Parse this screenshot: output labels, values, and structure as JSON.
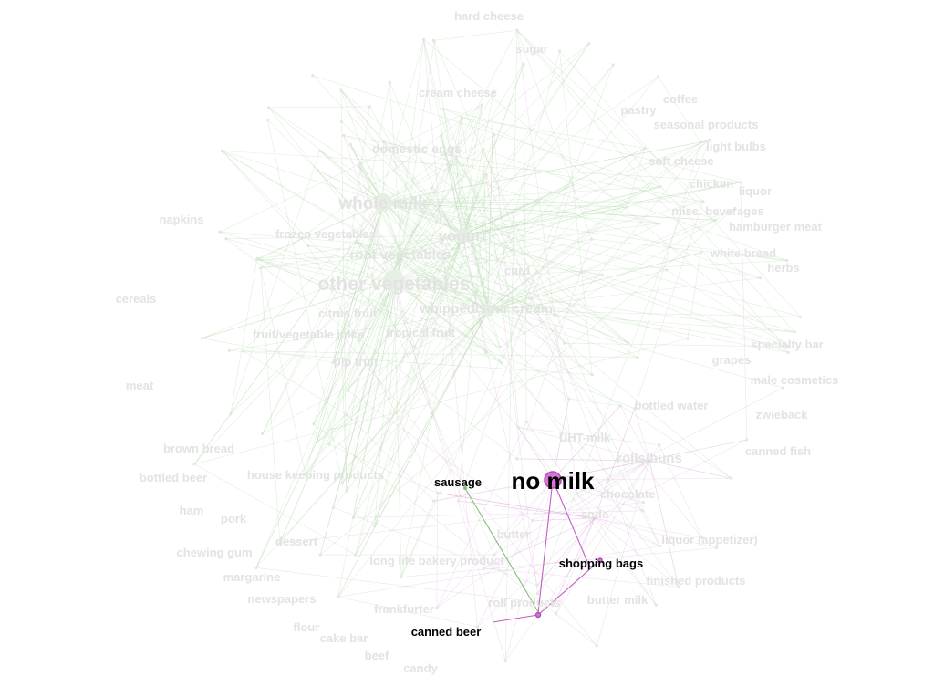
{
  "graph": {
    "focus": {
      "label": "no milk",
      "color": "#d774d7"
    },
    "highlighted_labels": [
      {
        "key": "sausage",
        "label": "sausage"
      },
      {
        "key": "shopping_bags",
        "label": "shopping bags"
      },
      {
        "key": "canned_beer",
        "label": "canned beer"
      }
    ],
    "faded_labels": [
      "hard cheese",
      "sugar",
      "cream cheese",
      "coffee",
      "pastry",
      "seasonal products",
      "light bulbs",
      "domestic eggs",
      "soft cheese",
      "chicken",
      "liquor",
      "napkins",
      "whole milk",
      "misc. beverages",
      "hamburger meat",
      "frozen vegetables",
      "yogurt",
      "root vegetables",
      "white bread",
      "herbs",
      "curd",
      "cereals",
      "other vegetables",
      "whipped/sour cream",
      "citrus fruit",
      "fruit/vegetable juice",
      "tropical fruit",
      "specialty bar",
      "grapes",
      "pip fruit",
      "male cosmetics",
      "meat",
      "bottled water",
      "zwieback",
      "UHT-milk",
      "brown bread",
      "rolls/buns",
      "canned fish",
      "bottled beer",
      "house keeping products",
      "chocolate",
      "ham",
      "soda",
      "pork",
      "butter",
      "liquor (appetizer)",
      "dessert",
      "chewing gum",
      "long life bakery product",
      "margarine",
      "finished products",
      "newspapers",
      "butter milk",
      "roll products",
      "frankfurter",
      "flour",
      "cake bar",
      "beef",
      "candy"
    ],
    "colors": {
      "faded_text": "#e3e3e3",
      "highlight_text": "#000000",
      "green_edges": "#b9dcb2",
      "pink_edges": "#d9a6d9"
    }
  }
}
